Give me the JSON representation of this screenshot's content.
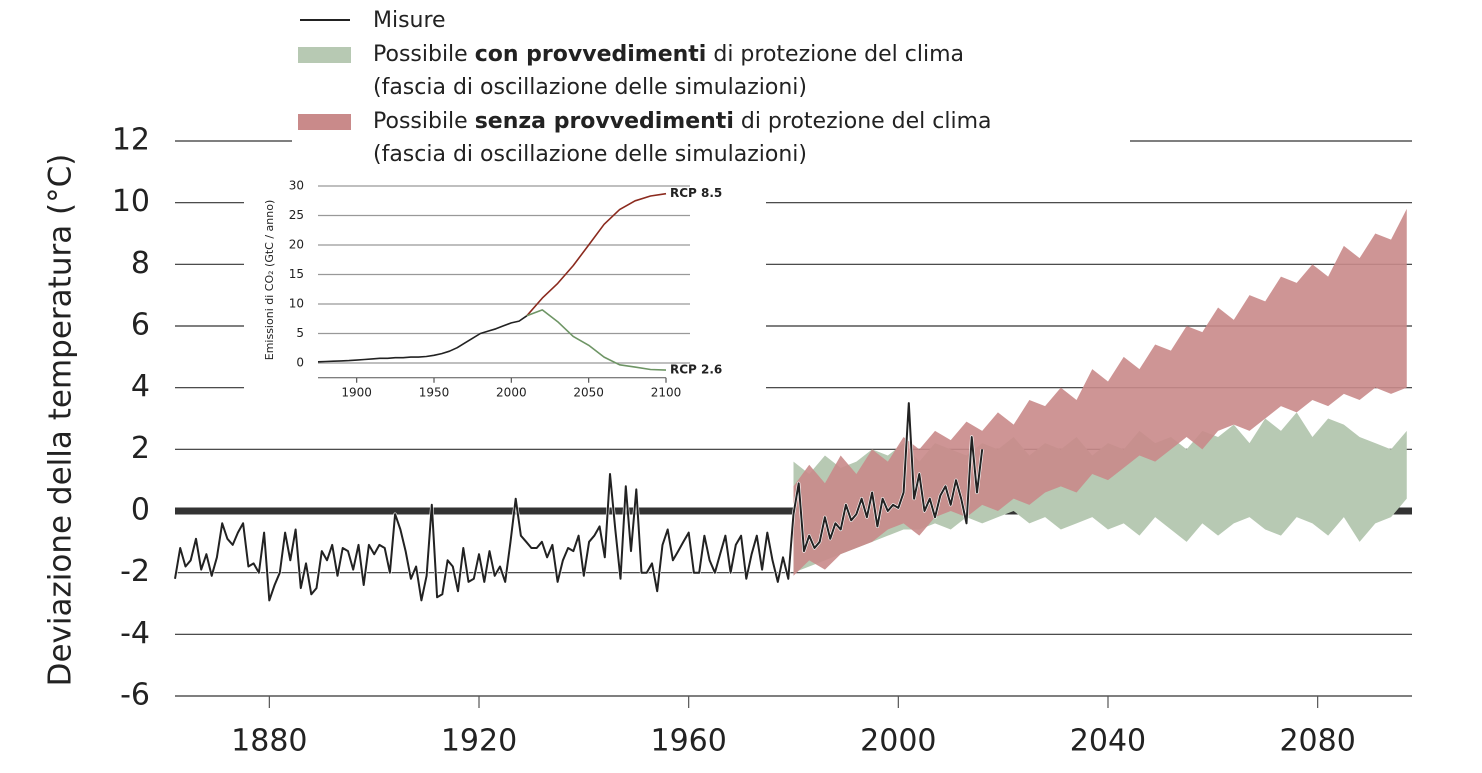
{
  "chart_data": [
    {
      "type": "line",
      "ylabel": "Deviazione della temperatura  (°C)",
      "xlim": [
        1862,
        2098
      ],
      "xticks": [
        1880,
        1920,
        1960,
        2000,
        2040,
        2080
      ],
      "ylim": [
        -6,
        12
      ],
      "yticks": [
        -6,
        -4,
        -2,
        0,
        2,
        4,
        6,
        8,
        10,
        12
      ],
      "grid": true,
      "series": [
        {
          "name": "Misure",
          "color": "#222222",
          "x": [
            1862,
            1863,
            1864,
            1865,
            1866,
            1867,
            1868,
            1869,
            1870,
            1871,
            1872,
            1873,
            1874,
            1875,
            1876,
            1877,
            1878,
            1879,
            1880,
            1881,
            1882,
            1883,
            1884,
            1885,
            1886,
            1887,
            1888,
            1889,
            1890,
            1891,
            1892,
            1893,
            1894,
            1895,
            1896,
            1897,
            1898,
            1899,
            1900,
            1901,
            1902,
            1903,
            1904,
            1905,
            1906,
            1907,
            1908,
            1909,
            1910,
            1911,
            1912,
            1913,
            1914,
            1915,
            1916,
            1917,
            1918,
            1919,
            1920,
            1921,
            1922,
            1923,
            1924,
            1925,
            1926,
            1927,
            1928,
            1929,
            1930,
            1931,
            1932,
            1933,
            1934,
            1935,
            1936,
            1937,
            1938,
            1939,
            1940,
            1941,
            1942,
            1943,
            1944,
            1945,
            1946,
            1947,
            1948,
            1949,
            1950,
            1951,
            1952,
            1953,
            1954,
            1955,
            1956,
            1957,
            1958,
            1959,
            1960,
            1961,
            1962,
            1963,
            1964,
            1965,
            1966,
            1967,
            1968,
            1969,
            1970,
            1971,
            1972,
            1973,
            1974,
            1975,
            1976,
            1977,
            1978,
            1979,
            1980,
            1981,
            1982,
            1983,
            1984,
            1985,
            1986,
            1987,
            1988,
            1989,
            1990,
            1991,
            1992,
            1993,
            1994,
            1995,
            1996,
            1997,
            1998,
            1999,
            2000,
            2001,
            2002,
            2003,
            2004,
            2005,
            2006,
            2007,
            2008,
            2009,
            2010,
            2011,
            2012,
            2013,
            2014,
            2015,
            2016
          ],
          "values": [
            -2.2,
            -1.2,
            -1.8,
            -1.6,
            -0.9,
            -1.9,
            -1.4,
            -2.1,
            -1.5,
            -0.4,
            -0.9,
            -1.1,
            -0.7,
            -0.4,
            -1.8,
            -1.7,
            -2.0,
            -0.7,
            -2.9,
            -2.4,
            -2.0,
            -0.7,
            -1.6,
            -0.6,
            -2.5,
            -1.7,
            -2.7,
            -2.5,
            -1.3,
            -1.6,
            -1.1,
            -2.1,
            -1.2,
            -1.3,
            -1.9,
            -1.1,
            -2.4,
            -1.1,
            -1.4,
            -1.1,
            -1.2,
            -2.0,
            -0.1,
            -0.6,
            -1.3,
            -2.2,
            -1.8,
            -2.9,
            -2.1,
            0.2,
            -2.8,
            -2.7,
            -1.6,
            -1.8,
            -2.6,
            -1.2,
            -2.3,
            -2.2,
            -1.4,
            -2.3,
            -1.3,
            -2.1,
            -1.8,
            -2.3,
            -1.0,
            0.4,
            -0.8,
            -1.0,
            -1.2,
            -1.2,
            -1.0,
            -1.5,
            -1.1,
            -2.3,
            -1.6,
            -1.2,
            -1.3,
            -0.8,
            -2.1,
            -1.0,
            -0.8,
            -0.5,
            -1.5,
            1.2,
            -0.6,
            -2.2,
            0.8,
            -1.3,
            0.7,
            -2.0,
            -2.0,
            -1.7,
            -2.6,
            -1.1,
            -0.6,
            -1.6,
            -1.3,
            -1.0,
            -0.7,
            -2.0,
            -2.0,
            -0.8,
            -1.6,
            -2.0,
            -1.4,
            -0.8,
            -2.0,
            -1.1,
            -0.8,
            -2.2,
            -1.4,
            -0.8,
            -1.9,
            -0.7,
            -1.6,
            -2.3,
            -1.5,
            -2.2,
            -0.1,
            0.9,
            -1.3,
            -0.8,
            -1.2,
            -1.0,
            -0.2,
            -0.9,
            -0.4,
            -0.6,
            0.2,
            -0.3,
            -0.1,
            0.4,
            -0.2,
            0.6,
            -0.5,
            0.4,
            0.0,
            0.2,
            0.1,
            0.6,
            3.5,
            0.4,
            1.2,
            0.0,
            0.4,
            -0.2,
            0.5,
            0.8,
            0.2,
            1.0,
            0.4,
            -0.4,
            2.4,
            0.6,
            2.0
          ]
        },
        {
          "name": "Possibile con provvedimenti di protezione del clima",
          "name_bold": "con provvedimenti",
          "note": "(fascia di oscillazione delle simulazioni)",
          "color": "#b7c9b3",
          "x": [
            1980,
            1983,
            1986,
            1989,
            1992,
            1995,
            1998,
            2001,
            2004,
            2007,
            2010,
            2013,
            2016,
            2019,
            2022,
            2025,
            2028,
            2031,
            2034,
            2037,
            2040,
            2043,
            2046,
            2049,
            2052,
            2055,
            2058,
            2061,
            2064,
            2067,
            2070,
            2073,
            2076,
            2079,
            2082,
            2085,
            2088,
            2091,
            2094,
            2097
          ],
          "high": [
            1.6,
            1.2,
            1.8,
            1.4,
            1.6,
            2.0,
            1.8,
            2.2,
            1.6,
            2.2,
            2.0,
            1.8,
            2.2,
            2.0,
            2.4,
            1.8,
            2.2,
            2.0,
            2.4,
            1.8,
            2.2,
            2.0,
            2.6,
            2.2,
            2.4,
            2.0,
            2.6,
            2.4,
            2.8,
            2.2,
            3.0,
            2.6,
            3.2,
            2.4,
            3.0,
            2.8,
            2.4,
            2.2,
            2.0,
            2.6
          ],
          "low": [
            -2.0,
            -1.8,
            -1.6,
            -1.4,
            -1.2,
            -1.0,
            -0.8,
            -0.6,
            -0.6,
            -0.4,
            -0.6,
            -0.2,
            -0.4,
            -0.2,
            0.0,
            -0.4,
            -0.2,
            -0.6,
            -0.4,
            -0.2,
            -0.6,
            -0.4,
            -0.8,
            -0.2,
            -0.6,
            -1.0,
            -0.4,
            -0.8,
            -0.4,
            -0.2,
            -0.6,
            -0.8,
            -0.2,
            -0.4,
            -0.8,
            -0.2,
            -1.0,
            -0.4,
            -0.2,
            0.4
          ]
        },
        {
          "name": "Possibile senza provvedimenti di protezione del clima",
          "name_bold": "senza provvedimenti",
          "note": "(fascia di oscillazione delle simulazioni)",
          "color": "#c98a8a",
          "x": [
            1980,
            1983,
            1986,
            1989,
            1992,
            1995,
            1998,
            2001,
            2004,
            2007,
            2010,
            2013,
            2016,
            2019,
            2022,
            2025,
            2028,
            2031,
            2034,
            2037,
            2040,
            2043,
            2046,
            2049,
            2052,
            2055,
            2058,
            2061,
            2064,
            2067,
            2070,
            2073,
            2076,
            2079,
            2082,
            2085,
            2088,
            2091,
            2094,
            2097
          ],
          "high": [
            0.8,
            1.5,
            0.9,
            1.8,
            1.2,
            2.0,
            1.6,
            2.4,
            2.0,
            2.6,
            2.3,
            2.9,
            2.6,
            3.2,
            2.8,
            3.6,
            3.4,
            4.0,
            3.6,
            4.6,
            4.2,
            5.0,
            4.6,
            5.4,
            5.2,
            6.0,
            5.8,
            6.6,
            6.2,
            7.0,
            6.8,
            7.6,
            7.4,
            8.0,
            7.6,
            8.6,
            8.2,
            9.0,
            8.8,
            9.8
          ],
          "low": [
            -2.1,
            -1.6,
            -1.9,
            -1.4,
            -1.2,
            -1.0,
            -0.6,
            -0.4,
            -0.8,
            -0.2,
            0.0,
            -0.2,
            0.2,
            0.0,
            0.4,
            0.2,
            0.6,
            0.8,
            0.6,
            1.2,
            1.0,
            1.4,
            1.8,
            1.6,
            2.0,
            2.4,
            2.0,
            2.6,
            2.8,
            2.6,
            3.0,
            3.4,
            3.2,
            3.6,
            3.4,
            3.8,
            3.6,
            4.0,
            3.8,
            4.0
          ]
        }
      ]
    },
    {
      "type": "line",
      "ylabel": "Emissioni di CO₂ (GtC / anno)",
      "xlim": [
        1875,
        2100
      ],
      "xticks": [
        1900,
        1950,
        2000,
        2050,
        2100
      ],
      "ylim": [
        -2.5,
        30
      ],
      "yticks": [
        0,
        5,
        10,
        15,
        20,
        25,
        30
      ],
      "grid": true,
      "series": [
        {
          "color": "#222222",
          "x": [
            1875,
            1880,
            1885,
            1890,
            1895,
            1900,
            1905,
            1910,
            1915,
            1920,
            1925,
            1930,
            1935,
            1940,
            1945,
            1950,
            1955,
            1960,
            1965,
            1970,
            1975,
            1980,
            1985,
            1990,
            1995,
            2000,
            2005,
            2010
          ],
          "values": [
            0.2,
            0.25,
            0.3,
            0.35,
            0.4,
            0.5,
            0.6,
            0.7,
            0.8,
            0.8,
            0.9,
            0.9,
            1.0,
            1.0,
            1.1,
            1.3,
            1.6,
            2.0,
            2.6,
            3.4,
            4.2,
            5.0,
            5.4,
            5.8,
            6.3,
            6.8,
            7.1,
            8.0
          ]
        },
        {
          "name": "RCP 8.5",
          "color": "#8b2a1e",
          "x": [
            2010,
            2020,
            2030,
            2040,
            2050,
            2060,
            2070,
            2080,
            2090,
            2100
          ],
          "values": [
            8.0,
            11,
            13.5,
            16.5,
            20,
            23.5,
            26,
            27.5,
            28.3,
            28.7
          ]
        },
        {
          "name": "RCP 2.6",
          "color": "#6e9565",
          "x": [
            2010,
            2020,
            2030,
            2040,
            2050,
            2060,
            2070,
            2080,
            2090,
            2100
          ],
          "values": [
            8.0,
            9,
            7,
            4.5,
            3,
            1,
            -0.3,
            -0.7,
            -1.1,
            -1.2
          ]
        }
      ]
    }
  ]
}
